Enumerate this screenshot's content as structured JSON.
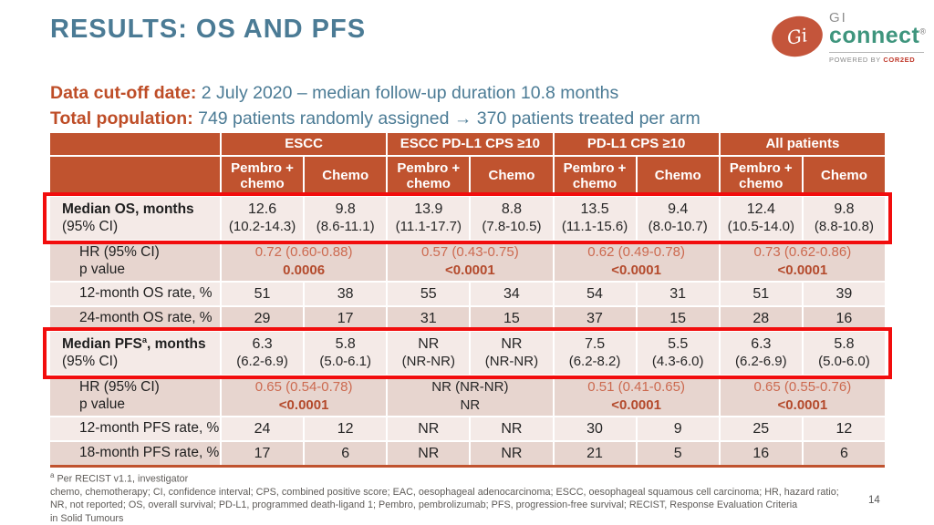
{
  "slide": {
    "title": "RESULTS: OS AND PFS",
    "page_number": "14"
  },
  "subtitle": [
    {
      "label": "Data cut-off date:",
      "text": " 2 July 2020 – median follow-up duration 10.8 months"
    },
    {
      "label": "Total population:",
      "text": " 749 patients randomly assigned → 370 patients treated per arm"
    }
  ],
  "logo": {
    "monogram": "Gi",
    "name_top": "GI",
    "name_bottom": "connect",
    "registered": "®",
    "tagline_prefix": "POWERED BY ",
    "tagline_brand": "COR2ED"
  },
  "table": {
    "groups": [
      "ESCC",
      "ESCC PD-L1 CPS ≥10",
      "PD-L1 CPS ≥10",
      "All patients"
    ],
    "arms": [
      "Pembro + chemo",
      "Chemo",
      "Pembro + chemo",
      "Chemo",
      "Pembro + chemo",
      "Chemo",
      "Pembro + chemo",
      "Chemo"
    ],
    "rows": [
      {
        "key": "median-os",
        "label": "Median OS, months",
        "label_sup": "",
        "label_post": "",
        "label_line2": "(95% CI)",
        "bold": true,
        "highlighted": true,
        "type": "pair",
        "cells": [
          [
            "12.6",
            "(10.2-14.3)"
          ],
          [
            "9.8",
            "(8.6-11.1)"
          ],
          [
            "13.9",
            "(11.1-17.7)"
          ],
          [
            "8.8",
            "(7.8-10.5)"
          ],
          [
            "13.5",
            "(11.1-15.6)"
          ],
          [
            "9.4",
            "(8.0-10.7)"
          ],
          [
            "12.4",
            "(10.5-14.0)"
          ],
          [
            "9.8",
            "(8.8-10.8)"
          ]
        ]
      },
      {
        "key": "os-hr",
        "label": "HR (95% CI)",
        "label_line2": "p value",
        "type": "hr",
        "cells": [
          {
            "hr": "0.72 (0.60-0.88)",
            "p": "0.0006",
            "colored": true
          },
          {
            "hr": "0.57 (0.43-0.75)",
            "p": "<0.0001",
            "colored": true
          },
          {
            "hr": "0.62 (0.49-0.78)",
            "p": "<0.0001",
            "colored": true
          },
          {
            "hr": "0.73 (0.62-0.86)",
            "p": "<0.0001",
            "colored": true
          }
        ]
      },
      {
        "key": "os-rate-12",
        "label": "12-month OS rate, %",
        "type": "single",
        "cells": [
          "51",
          "38",
          "55",
          "34",
          "54",
          "31",
          "51",
          "39"
        ]
      },
      {
        "key": "os-rate-24",
        "label": "24-month OS rate, %",
        "type": "single",
        "cells": [
          "29",
          "17",
          "31",
          "15",
          "37",
          "15",
          "28",
          "16"
        ]
      },
      {
        "key": "median-pfs",
        "label": "Median PFS",
        "label_sup": "a",
        "label_post": ", months",
        "label_line2": "(95% CI)",
        "bold": true,
        "highlighted": true,
        "type": "pair",
        "cells": [
          [
            "6.3",
            "(6.2-6.9)"
          ],
          [
            "5.8",
            "(5.0-6.1)"
          ],
          [
            "NR",
            "(NR-NR)"
          ],
          [
            "NR",
            "(NR-NR)"
          ],
          [
            "7.5",
            "(6.2-8.2)"
          ],
          [
            "5.5",
            "(4.3-6.0)"
          ],
          [
            "6.3",
            "(6.2-6.9)"
          ],
          [
            "5.8",
            "(5.0-6.0)"
          ]
        ]
      },
      {
        "key": "pfs-hr",
        "label": "HR (95% CI)",
        "label_line2": "p value",
        "type": "hr",
        "cells": [
          {
            "hr": "0.65 (0.54-0.78)",
            "p": "<0.0001",
            "colored": true
          },
          {
            "hr": "NR (NR-NR)",
            "p": "NR",
            "colored": false
          },
          {
            "hr": "0.51 (0.41-0.65)",
            "p": "<0.0001",
            "colored": true
          },
          {
            "hr": "0.65 (0.55-0.76)",
            "p": "<0.0001",
            "colored": true
          }
        ]
      },
      {
        "key": "pfs-rate-12",
        "label": "12-month PFS rate, %",
        "type": "single",
        "cells": [
          "24",
          "12",
          "NR",
          "NR",
          "30",
          "9",
          "25",
          "12"
        ]
      },
      {
        "key": "pfs-rate-18",
        "label": "18-month PFS rate, %",
        "type": "single",
        "cells": [
          "17",
          "6",
          "NR",
          "NR",
          "21",
          "5",
          "16",
          "6"
        ]
      }
    ]
  },
  "footnote": {
    "sup": "a",
    "line1": " Per RECIST v1.1, investigator",
    "line2": "chemo, chemotherapy; CI, confidence interval; CPS, combined positive score; EAC, oesophageal adenocarcinoma; ESCC, oesophageal squamous cell carcinoma; HR, hazard ratio;",
    "line3": "NR, not reported; OS, overall survival; PD-L1, programmed death-ligand 1; Pembro, pembrolizumab; PFS, progression-free survival; RECIST, Response Evaluation Criteria",
    "line4": "in Solid Tumours"
  },
  "colors": {
    "accent_orange": "#C0532F",
    "title_blue": "#4B7B95",
    "subtitle_label_orange": "#BE4D27",
    "highlight_red": "#F20D0D",
    "row_light": "#F4EAE7",
    "row_dark": "#E7D5CF",
    "hr_value_text": "#CC6A50",
    "p_value_text": "#B44A2C",
    "footnote_gray": "#5E5B58",
    "logo_teal": "#3E957D",
    "logo_oval_orange": "#C4553B",
    "logo_brand_red": "#C0392B"
  }
}
